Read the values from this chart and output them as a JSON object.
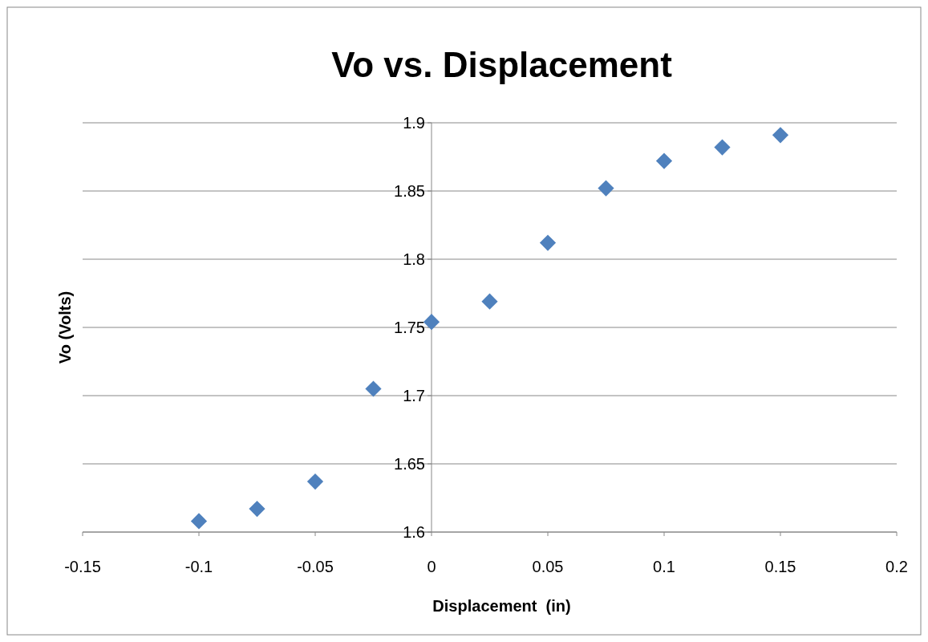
{
  "chart_data": {
    "type": "scatter",
    "title": "Vo vs. Displacement",
    "xlabel": "Displacement  (in)",
    "ylabel": "Vo (Volts)",
    "x": [
      -0.1,
      -0.075,
      -0.05,
      -0.025,
      0,
      0.025,
      0.05,
      0.075,
      0.1,
      0.125,
      0.15
    ],
    "series": [
      {
        "color": "#4f81bd",
        "values": [
          1.608,
          1.617,
          1.637,
          1.705,
          1.754,
          1.769,
          1.812,
          1.852,
          1.872,
          1.882,
          1.891
        ]
      }
    ],
    "xlim": [
      -0.15,
      0.2
    ],
    "xticks": [
      -0.15,
      -0.1,
      -0.05,
      0,
      0.05,
      0.1,
      0.15,
      0.2
    ],
    "ylim": [
      1.6,
      1.9
    ],
    "yticks": [
      1.6,
      1.65,
      1.7,
      1.75,
      1.8,
      1.85,
      1.9
    ],
    "grid": "y",
    "marker": "diamond"
  }
}
